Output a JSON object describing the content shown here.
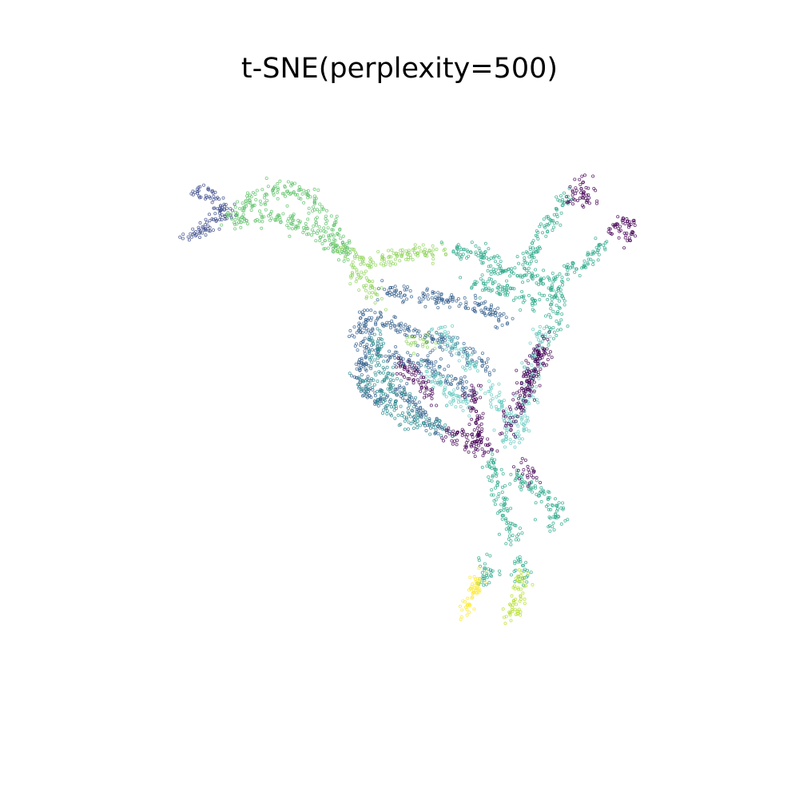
{
  "chart_data": {
    "type": "scatter",
    "title": "t-SNE(perplexity=500)",
    "xlabel": "",
    "ylabel": "",
    "axes_visible": false,
    "grid": false,
    "legend": "none",
    "marker": "hollow-circle",
    "colormap": "viridis",
    "xlim": [
      0,
      100
    ],
    "ylim": [
      0,
      100
    ],
    "series": [
      {
        "color": "#3b4a8a",
        "curves": [
          [
            [
              17.5,
              82.8
            ],
            [
              20.0,
              82.4
            ],
            [
              21.8,
              80.6
            ],
            [
              23.5,
              79.4
            ]
          ],
          [
            [
              16.0,
              75.8
            ],
            [
              18.8,
              76.2
            ],
            [
              21.6,
              78.2
            ],
            [
              23.5,
              79.4
            ]
          ]
        ]
      },
      {
        "color": "#5bc066",
        "curves": [
          [
            [
              23,
              79
            ],
            [
              27,
              81
            ],
            [
              32,
              83
            ],
            [
              36,
              82
            ],
            [
              38,
              79
            ],
            [
              40,
              75.5
            ],
            [
              42,
              73
            ]
          ],
          [
            [
              24,
              78
            ],
            [
              28,
              78.5
            ],
            [
              33,
              78
            ],
            [
              37,
              76
            ],
            [
              40,
              74
            ],
            [
              42,
              72.5
            ]
          ]
        ]
      },
      {
        "color": "#8fd35a",
        "curves": [
          [
            [
              41,
              73.5
            ],
            [
              45,
              71
            ],
            [
              49,
              72.5
            ],
            [
              54,
              73.5
            ],
            [
              57,
              73
            ]
          ],
          [
            [
              42,
              70.5
            ],
            [
              45,
              68
            ],
            [
              47,
              66
            ]
          ],
          [
            [
              51,
              59.5
            ],
            [
              53,
              59
            ],
            [
              54.5,
              58.5
            ]
          ]
        ]
      },
      {
        "color": "#35608d",
        "curves": [
          [
            [
              47,
              67
            ],
            [
              55,
              66
            ],
            [
              60,
              65
            ],
            [
              64,
              64
            ],
            [
              67,
              62
            ]
          ],
          [
            [
              44,
              63
            ],
            [
              48,
              62
            ],
            [
              53,
              60
            ],
            [
              57,
              59
            ],
            [
              61,
              57
            ],
            [
              64,
              55
            ]
          ],
          [
            [
              43,
              60
            ],
            [
              45,
              62
            ],
            [
              44,
              55
            ],
            [
              45,
              51
            ],
            [
              48,
              49
            ]
          ],
          [
            [
              46,
              58
            ],
            [
              50,
              56
            ],
            [
              54,
              55.5
            ],
            [
              58,
              53
            ],
            [
              62,
              51
            ]
          ],
          [
            [
              49,
              52
            ],
            [
              53,
              48
            ],
            [
              55,
              46
            ],
            [
              57,
              45
            ]
          ]
        ]
      },
      {
        "color": "#2b8c8e",
        "curves": [
          [
            [
              44,
              53
            ],
            [
              47,
              50
            ],
            [
              51,
              47
            ],
            [
              55,
              46
            ],
            [
              57,
              45
            ]
          ],
          [
            [
              47,
              61
            ],
            [
              46,
              57
            ],
            [
              48,
              53
            ],
            [
              52,
              50
            ]
          ]
        ]
      },
      {
        "color": "#29a989",
        "curves": [
          [
            [
              58,
              73
            ],
            [
              62,
              73.5
            ],
            [
              66,
              71
            ]
          ],
          [
            [
              64,
              70
            ],
            [
              68,
              70
            ],
            [
              72,
              69
            ],
            [
              74,
              67
            ]
          ],
          [
            [
              61,
              68
            ],
            [
              65,
              68
            ],
            [
              69,
              66
            ],
            [
              72,
              65
            ]
          ],
          [
            [
              74,
              67
            ],
            [
              75,
              63
            ],
            [
              73,
              60
            ]
          ],
          [
            [
              70,
              71
            ],
            [
              72,
              76
            ],
            [
              74,
              78.5
            ],
            [
              76,
              82
            ]
          ],
          [
            [
              74,
              68
            ],
            [
              77,
              70
            ],
            [
              80,
              72
            ],
            [
              82,
              74.5
            ]
          ],
          [
            [
              64,
              41
            ],
            [
              65,
              37
            ],
            [
              66,
              34
            ],
            [
              67,
              31
            ],
            [
              68,
              28
            ]
          ],
          [
            [
              68,
              38
            ],
            [
              71,
              36
            ],
            [
              74,
              34
            ],
            [
              75,
              32
            ],
            [
              73,
              30
            ]
          ],
          [
            [
              63,
              25
            ],
            [
              64,
              23
            ],
            [
              62.5,
              21
            ]
          ],
          [
            [
              68.5,
              25
            ],
            [
              69.5,
              23.5
            ],
            [
              69,
              21.5
            ]
          ]
        ]
      },
      {
        "color": "#65c9c0",
        "curves": [
          [
            [
              72,
              61
            ],
            [
              71.5,
              57
            ],
            [
              70.5,
              53
            ],
            [
              69.5,
              49
            ],
            [
              68.5,
              44
            ]
          ],
          [
            [
              64,
              52
            ],
            [
              66,
              49
            ],
            [
              67,
              46
            ],
            [
              66.5,
              43
            ]
          ],
          [
            [
              56,
              61
            ],
            [
              58,
              59
            ],
            [
              60,
              57
            ],
            [
              62,
              55
            ]
          ],
          [
            [
              54,
              55
            ],
            [
              56,
              53
            ],
            [
              59,
              50
            ],
            [
              61,
              48
            ]
          ]
        ]
      },
      {
        "color": "#440154",
        "curves": [
          [
            [
              77,
              81
            ],
            [
              77.5,
              82.5
            ],
            [
              78.8,
              83.8
            ],
            [
              79.5,
              82.3
            ],
            [
              79.2,
              80.5
            ]
          ],
          [
            [
              83,
              75.8
            ],
            [
              84,
              77.5
            ],
            [
              85.5,
              78
            ],
            [
              86,
              76.5
            ],
            [
              85,
              74.5
            ]
          ],
          [
            [
              73,
              60
            ],
            [
              72,
              56
            ],
            [
              70,
              52
            ],
            [
              68,
              48
            ],
            [
              67,
              45
            ]
          ],
          [
            [
              72,
              57
            ],
            [
              70,
              54
            ],
            [
              69,
              50.5
            ]
          ],
          [
            [
              49,
              56
            ],
            [
              52,
              54
            ],
            [
              54,
              52
            ],
            [
              55,
              50
            ]
          ],
          [
            [
              61,
              52
            ],
            [
              62,
              48
            ],
            [
              62.5,
              44
            ],
            [
              61,
              42
            ]
          ],
          [
            [
              57,
              45
            ],
            [
              60,
              44
            ],
            [
              62,
              43.5
            ],
            [
              64,
              41.5
            ]
          ],
          [
            [
              69,
              40
            ],
            [
              70,
              39
            ],
            [
              71,
              37.5
            ]
          ]
        ]
      },
      {
        "color": "#b5de2b",
        "curves": [
          [
            [
              69.5,
              23
            ],
            [
              69,
              20
            ],
            [
              68.5,
              17.5
            ],
            [
              67.5,
              16
            ],
            [
              66.5,
              16.5
            ]
          ]
        ]
      },
      {
        "color": "#fde725",
        "curves": [
          [
            [
              62.5,
              23
            ],
            [
              62,
              20.5
            ],
            [
              61,
              18.5
            ],
            [
              60,
              17.5
            ],
            [
              61,
              17
            ]
          ]
        ]
      }
    ]
  }
}
